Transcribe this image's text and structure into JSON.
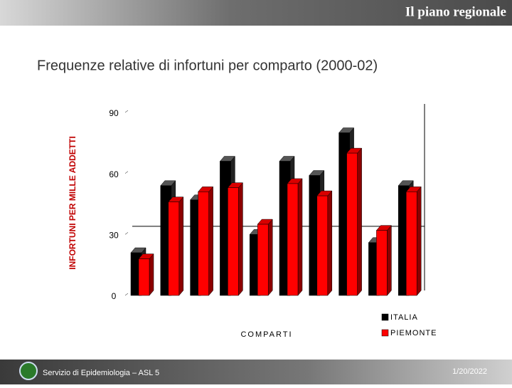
{
  "header": {
    "title": "Il piano regionale"
  },
  "footer": {
    "left": "Servizio di Epidemiologia – ASL 5",
    "date": "1/20/2022"
  },
  "chart_data": {
    "type": "bar3d",
    "title": "Frequenze relative di infortuni per comparto (2000-02)",
    "y_label": "INFORTUNI PER MILLE ADDETTI",
    "x_label": "COMPARTI",
    "categories": [
      null,
      null,
      null,
      null,
      null,
      null,
      null,
      null,
      null,
      null
    ],
    "series": [
      {
        "name": "ITALIA",
        "color": "#000000",
        "values": [
          21,
          54,
          47,
          66,
          30,
          66,
          59,
          80,
          26,
          54
        ]
      },
      {
        "name": "PIEMONTE",
        "color": "#ff0000",
        "values": [
          18,
          46,
          51,
          53,
          35,
          55,
          49,
          70,
          32,
          51
        ]
      }
    ],
    "ylim": [
      0,
      90
    ],
    "yticks": [
      0,
      30,
      60,
      90
    ],
    "reference_line": 34,
    "legend": "bottom-right"
  }
}
